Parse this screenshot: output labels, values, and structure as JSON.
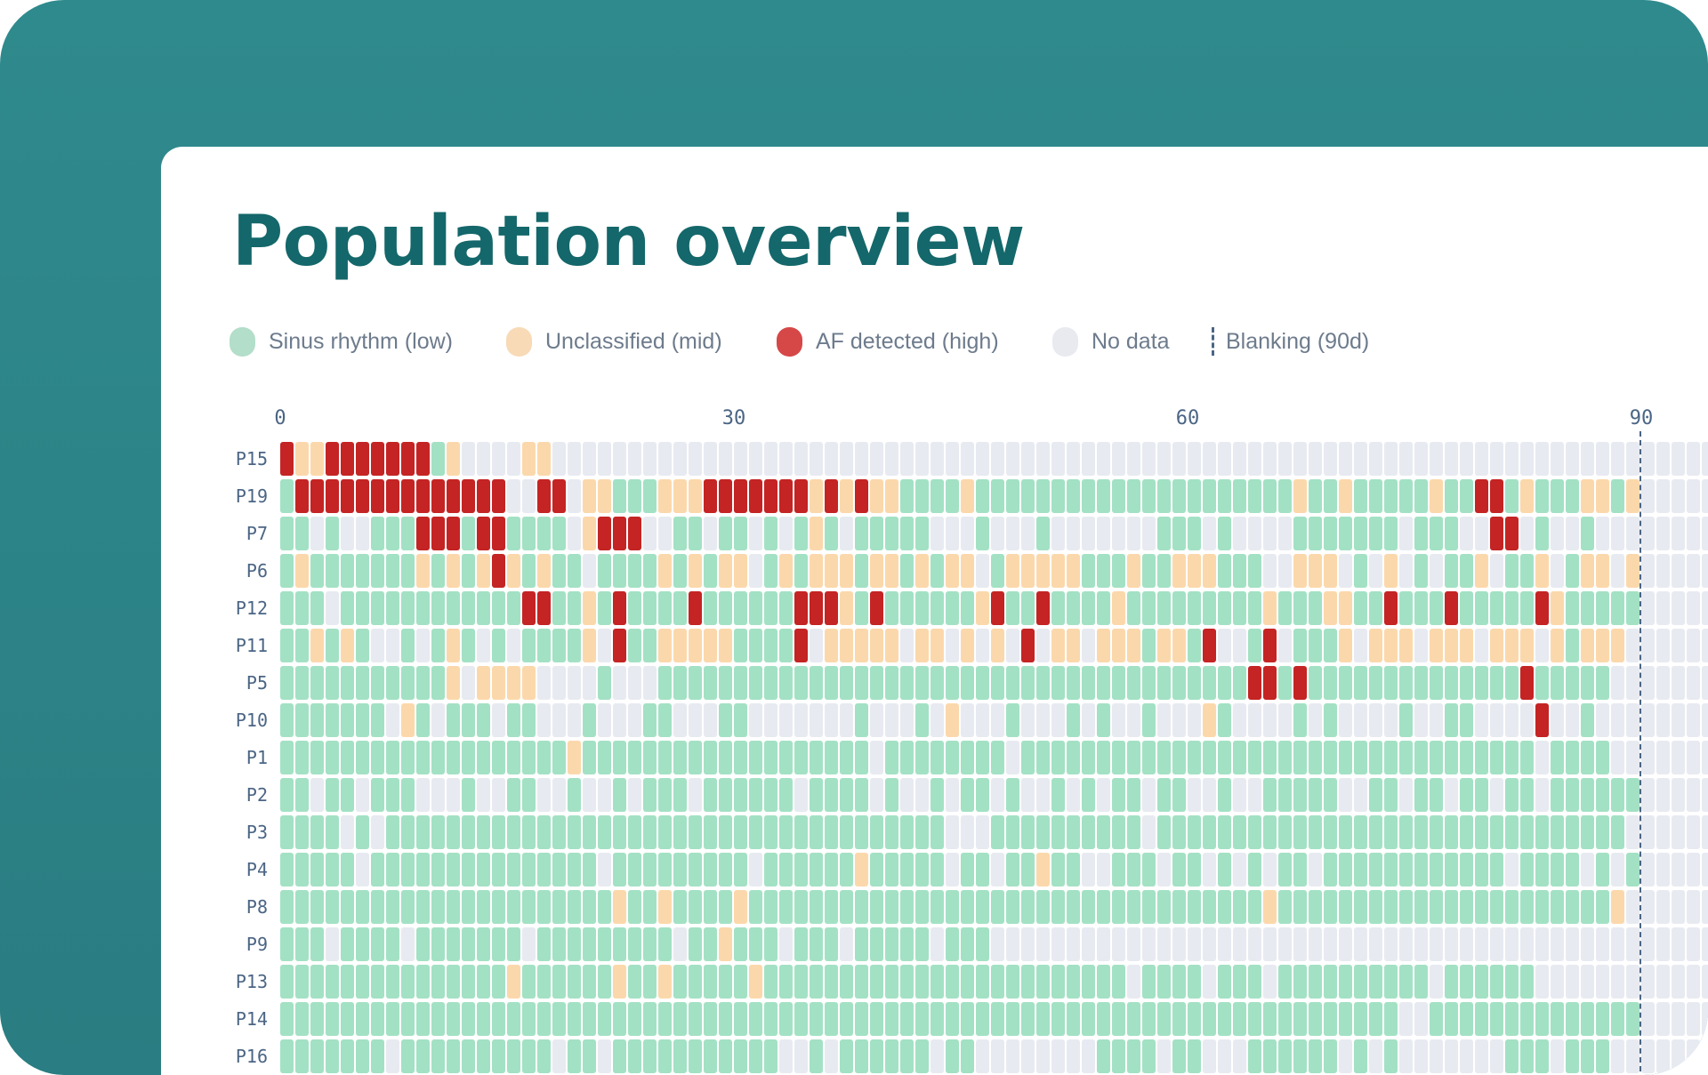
{
  "header": {
    "title": "Population overview"
  },
  "colors": {
    "S": "#a3e1c4",
    "U": "#fbd8ab",
    "A": "#c42424",
    "N": "#e8eaf1",
    "blanking": "#4b6584",
    "title": "#14676a",
    "frame": "#2e878a"
  },
  "legend": [
    {
      "label": "Sinus rhythm (low)",
      "code": "S",
      "swatch": "#b3dec9"
    },
    {
      "label": "Unclassified (mid)",
      "code": "U",
      "swatch": "#f8dab7"
    },
    {
      "label": "AF detected (high)",
      "code": "A",
      "swatch": "#d64848"
    },
    {
      "label": "No data",
      "code": "N",
      "swatch": "#e8eaf0"
    },
    {
      "label": "Blanking (90d)",
      "code": "blanking",
      "swatch": "dashed-line"
    }
  ],
  "chart_data": {
    "type": "heatmap",
    "x_ticks": [
      0,
      30,
      60,
      90
    ],
    "x_tick_labels": [
      "0",
      "30",
      "60",
      "90"
    ],
    "blanking_day": 90,
    "status_codes": {
      "S": "Sinus rhythm (low)",
      "U": "Unclassified (mid)",
      "A": "AF detected (high)",
      "N": "No data"
    },
    "rows": [
      {
        "label": "P15",
        "days": "AUUAAAAAAASUNNNNUUNNNNNNNNNNNNNNNNNNNNNNNNNNNNNNNNNNNNNNNNNNNNNNNNNNNNNNNNNNNNNNNNNNNNNNNNNNNNNN"
      },
      {
        "label": "P19",
        "days": "SAAAAAAAAAAAAAANNAANUUSSSUUUAAAAAAAUAUAUUSSSSUSSSSSSSSSSSSSSSSSSSSSUSSUSSSSSUSSAASUSSSUUSUNNNNN"
      },
      {
        "label": "P7",
        "days": "SSNSNNSSSAAASAASSSSNUAAANNSSNSSNSNSUSNSSSSSNNNSNNNSNNNNNNNSSSNSNNNNSSSSSSSNSSSNNAANSNNSNNNNNNNN"
      },
      {
        "label": "P6",
        "days": "SUSSSSSSSUSUSUAUSUSSNSSSSUSUSUUNSUSUUUSUUSUSUUNSUUUUUSSSUSSUUUSSSNNUUUNSNUNSNSSUNSSUNSUUNUNNNNN"
      },
      {
        "label": "P12",
        "days": "SSSNSSSSSSSSSSSSAASSUSASSSSASSSSSSAAAUSASSSSSSUASSASSSSUSSSSSSSSSUSSSUUSSASSSASSSSSAUSSSSSNNNNN"
      },
      {
        "label": "P11",
        "days": "SSUSUSNNSNSUSNSNSSSSUNASSUUUUUSSSSANUUUUUNUUNUNUNANUUNUUUSUUSANNSANSSSUNUUUNUUUNUUUNUSUUUNNNNNN"
      },
      {
        "label": "P5",
        "days": "SSSSSSSSSSSUNUUUUNNNNSNNNSSSSSSSSSSSSSSSSSSSSSSSSSSSSSSSSSSSSSSSAASASSSSSSSSSSSSSSASSSSSNNNNN"
      },
      {
        "label": "P10",
        "days": "SSSSSSSNUSNSSSNSSNNNSNNNSSNNNSSNNNNNNNSNNNSNUNNNSNNNSNSNNSNNNUSNNNNSNSNNNNSNNSSNNNNANNSNNNNNNNN"
      },
      {
        "label": "P1",
        "days": "SSSSSSSSSSSSSSSSSSSUSSSSSSSSSSSSSSSSSSSNSSSSSSSSNSSSSSSSSSSSSSSSSSSSSSSSSSSSSSSSSSSNSSSSNNNNNN"
      },
      {
        "label": "P2",
        "days": "SSNSSNSSSNNNSNNSSNNSNNSNSSSNSSSSSSNSSSSNSNNSNSSNSNNSNSNSSNSSNNSNNSSSSSNNSSNSSNSSNSSNSSSSSSNNNNN"
      },
      {
        "label": "P3",
        "days": "SSSSNSNSSSSSSSSSSSSSSSSSSSSSSSSSSSSSSSSSSSSSNNNSSSSSSSSSSNSSSSSSSSSSSSSSSSSSSSSSSSSSSSSSSNNNNN"
      },
      {
        "label": "P4",
        "days": "SSSSSNSSSSSSSSSSSSSSSNSSSSSSSSSNSSSSSSUSSSSSNSSNSSUSSNNSSSNSSNSNSNSSNSSSSSSSSSSSSNSSSSNSNSNNNNN"
      },
      {
        "label": "P8",
        "days": "SSSSSSSSSSSSSSSSSSSSSSUSSUSSSSUSSSSSSSSSSSSSSSSSSSSSSSSSSSSSSSSSSUSSSSSSSSSSSSSSSSSSSSSSUNNNNN"
      },
      {
        "label": "P9",
        "days": "SSSNSSSSNSSSSSSSNSSSSSSSSSNSSUSSSNSSSNSSSSSNSSSNNNNNNNNNNNNNNNNNNNNNNNNNNNNNNNNNNNNNNNNNNNNNNNNN"
      },
      {
        "label": "P13",
        "days": "SSSSSSSSSSSSSSSUSSSSSSUSSUSSSSSUSSSSSSSSSSSSSSSSSSSSSSSSNSSSSNSSSNSSSSSSSSSSNSSSSSSNNNNNNNNNNNN"
      },
      {
        "label": "P14",
        "days": "SSSSSSSSSSSSSSSSSSSSSSSSSSSSSSSSSSSSSSSSSSSSSSSSSSSSSSSSSSSSSSSSSSSSSSSSSSNNSSSSSSSSSSSSSSNNNNN"
      },
      {
        "label": "P16",
        "days": "SSSSSSSNSSSSSSSSSSNSSNSSSSSSSSSSSNNSNSSSSSSNSSNNNNNNNNSSSSNSSNNNSSSSSSNSNSNNNNNNNSSSNSSSNNNNNNN"
      }
    ]
  }
}
